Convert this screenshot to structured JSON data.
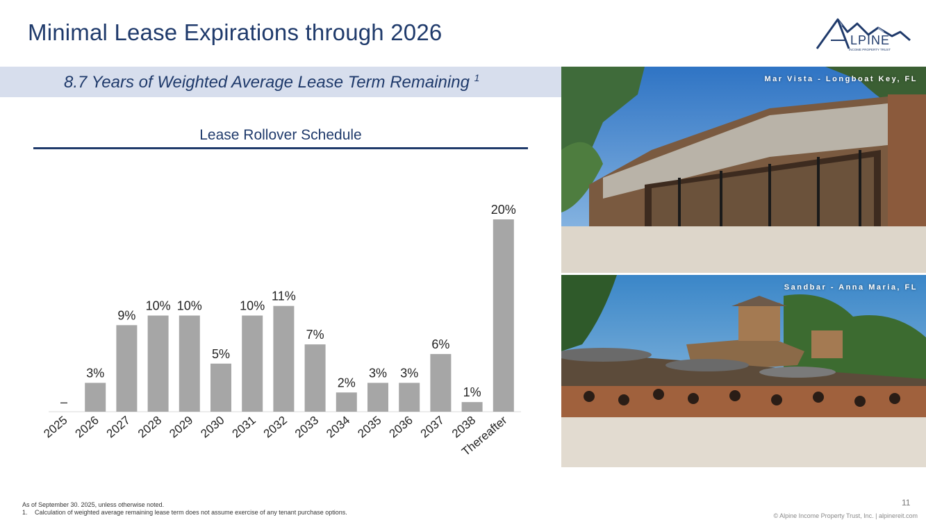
{
  "header": {
    "title": "Minimal Lease Expirations through 2026",
    "subtitle": "8.7 Years of Weighted Average Lease Term Remaining",
    "subtitle_footnote_mark": "1"
  },
  "logo": {
    "wordmark": "LPINE",
    "tagline": "INCOME PROPERTY TRUST"
  },
  "chart_data": {
    "type": "bar",
    "title": "Lease Rollover Schedule",
    "categories": [
      "2025",
      "2026",
      "2027",
      "2028",
      "2029",
      "2030",
      "2031",
      "2032",
      "2033",
      "2034",
      "2035",
      "2036",
      "2037",
      "2038",
      "Thereafter"
    ],
    "values": [
      0,
      3,
      9,
      10,
      10,
      5,
      10,
      11,
      7,
      2,
      3,
      3,
      6,
      1,
      20
    ],
    "labels": [
      "–",
      "3%",
      "9%",
      "10%",
      "10%",
      "5%",
      "10%",
      "11%",
      "7%",
      "2%",
      "3%",
      "3%",
      "6%",
      "1%",
      "20%"
    ],
    "ylim": [
      0,
      20
    ],
    "grid": false,
    "bar_color": "#a6a6a6"
  },
  "photos": [
    {
      "caption": "Mar Vista - Longboat Key, FL",
      "icon": "restaurant-photo"
    },
    {
      "caption": "Sandbar - Anna Maria, FL",
      "icon": "beach-dining-photo"
    }
  ],
  "footer": {
    "note1": "As of September 30. 2025, unless otherwise noted.",
    "note2_num": "1.",
    "note2": "Calculation of weighted average remaining lease term does not assume exercise of any tenant purchase options.",
    "page_number": "11",
    "copyright": "© Alpine Income Property Trust, Inc.  |  alpinereit.com"
  },
  "colors": {
    "navy": "#1f3a6b",
    "band": "#d7deed",
    "bar": "#a6a6a6"
  }
}
